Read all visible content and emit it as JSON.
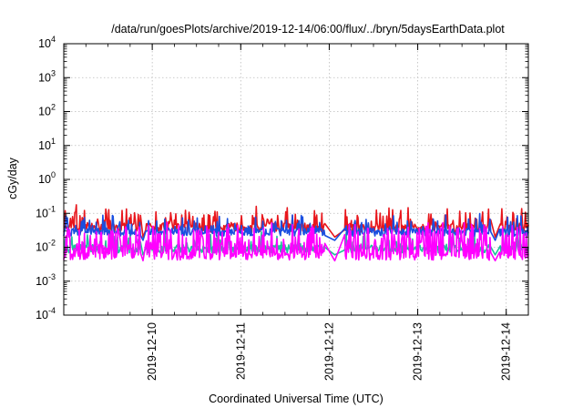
{
  "chart_data": {
    "type": "line",
    "title": "/data/run/goesPlots/archive/2019-12-14/06:00/flux/../bryn/5daysEarthData.plot",
    "xlabel": "Coordinated Universal Time (UTC)",
    "ylabel": "cGy/day",
    "yscale": "log",
    "ylim_exp": [
      -4,
      4
    ],
    "y_ticks": [
      {
        "base": "10",
        "exp": "-4",
        "value": 0.0001
      },
      {
        "base": "10",
        "exp": "-3",
        "value": 0.001
      },
      {
        "base": "10",
        "exp": "-2",
        "value": 0.01
      },
      {
        "base": "10",
        "exp": "-1",
        "value": 0.1
      },
      {
        "base": "10",
        "exp": "0",
        "value": 1
      },
      {
        "base": "10",
        "exp": "1",
        "value": 10
      },
      {
        "base": "10",
        "exp": "2",
        "value": 100
      },
      {
        "base": "10",
        "exp": "3",
        "value": 1000
      },
      {
        "base": "10",
        "exp": "4",
        "value": 10000
      }
    ],
    "xlim": [
      "2019-12-09T00:00",
      "2019-12-14T06:00"
    ],
    "x_ticks": [
      "2019-12-10",
      "2019-12-11",
      "2019-12-12",
      "2019-12-13",
      "2019-12-14"
    ],
    "grid": true,
    "series": [
      {
        "color": "#e8161c",
        "base": 0.038,
        "spread": 0.14,
        "spike_prob": 0.25,
        "spike_amp": 0.55,
        "drop": 0.02
      },
      {
        "color": "#1fc39a",
        "base": 0.009,
        "spread": 0.12,
        "spike_prob": 0.15,
        "spike_amp": 0.5,
        "drop": 0.006
      },
      {
        "color": "#1a4fe0",
        "base": 0.028,
        "spread": 0.12,
        "spike_prob": 0.2,
        "spike_amp": 0.45,
        "drop": 0.016
      },
      {
        "color": "#ff00ff",
        "base": 0.0055,
        "spread": 0.12,
        "spike_prob": 0.55,
        "spike_amp": 0.9,
        "drop": 0.004
      }
    ],
    "gaps": [
      [
        "2019-12-09T21:00",
        "2019-12-09T22:00"
      ],
      [
        "2019-12-11T23:00",
        "2019-12-12T04:00"
      ],
      [
        "2019-12-13T20:00",
        "2019-12-13T22:00"
      ]
    ]
  }
}
